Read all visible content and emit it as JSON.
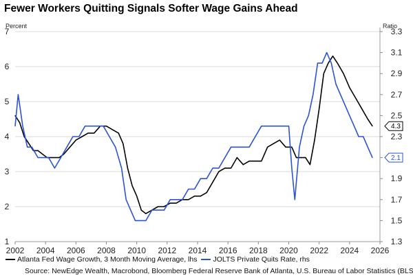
{
  "chart_data": {
    "type": "line",
    "title": "Fewer Workers Quitting Signals Softer Wage Gains Ahead",
    "left_axis": {
      "label": "Percent",
      "range": [
        1,
        7
      ],
      "ticks": [
        "1",
        "2",
        "3",
        "4",
        "5",
        "6",
        "7"
      ]
    },
    "right_axis": {
      "label": "Ratio",
      "range": [
        1.3,
        3.3
      ],
      "ticks": [
        "1.3",
        "1.5",
        "1.7",
        "1.9",
        "2.1",
        "2.3",
        "2.5",
        "2.7",
        "2.9",
        "3.1",
        "3.3"
      ]
    },
    "x_axis": {
      "range": [
        2002,
        2026
      ],
      "ticks": [
        "2002",
        "2004",
        "2006",
        "2008",
        "2010",
        "2012",
        "2014",
        "2016",
        "2018",
        "2020",
        "2022",
        "2024",
        "2026"
      ]
    },
    "grid": true,
    "series": [
      {
        "name": "Atlanta Fed Wage Growth, 3 Month Moving Average, lhs",
        "axis": "left",
        "color": "#000000",
        "end_label": "4.3",
        "points": [
          [
            2002.0,
            4.6
          ],
          [
            2002.3,
            4.4
          ],
          [
            2002.6,
            4.0
          ],
          [
            2002.9,
            3.8
          ],
          [
            2003.2,
            3.6
          ],
          [
            2003.5,
            3.6
          ],
          [
            2003.8,
            3.5
          ],
          [
            2004.1,
            3.4
          ],
          [
            2004.5,
            3.4
          ],
          [
            2004.9,
            3.4
          ],
          [
            2005.2,
            3.5
          ],
          [
            2005.6,
            3.7
          ],
          [
            2006.0,
            3.9
          ],
          [
            2006.4,
            4.0
          ],
          [
            2006.8,
            4.1
          ],
          [
            2007.2,
            4.1
          ],
          [
            2007.6,
            4.3
          ],
          [
            2008.0,
            4.3
          ],
          [
            2008.4,
            4.2
          ],
          [
            2008.8,
            4.1
          ],
          [
            2009.1,
            3.8
          ],
          [
            2009.4,
            3.1
          ],
          [
            2009.7,
            2.6
          ],
          [
            2010.0,
            2.3
          ],
          [
            2010.3,
            1.9
          ],
          [
            2010.6,
            1.8
          ],
          [
            2011.0,
            1.9
          ],
          [
            2011.4,
            2.0
          ],
          [
            2011.8,
            2.0
          ],
          [
            2012.2,
            2.1
          ],
          [
            2012.6,
            2.1
          ],
          [
            2013.0,
            2.2
          ],
          [
            2013.4,
            2.2
          ],
          [
            2013.8,
            2.3
          ],
          [
            2014.2,
            2.3
          ],
          [
            2014.6,
            2.4
          ],
          [
            2015.0,
            2.7
          ],
          [
            2015.4,
            3.0
          ],
          [
            2015.8,
            3.1
          ],
          [
            2016.2,
            3.1
          ],
          [
            2016.6,
            3.4
          ],
          [
            2017.0,
            3.2
          ],
          [
            2017.4,
            3.3
          ],
          [
            2017.8,
            3.3
          ],
          [
            2018.2,
            3.3
          ],
          [
            2018.6,
            3.7
          ],
          [
            2019.0,
            3.8
          ],
          [
            2019.4,
            3.9
          ],
          [
            2019.8,
            3.7
          ],
          [
            2020.2,
            3.7
          ],
          [
            2020.5,
            3.4
          ],
          [
            2020.8,
            3.4
          ],
          [
            2021.1,
            3.4
          ],
          [
            2021.4,
            3.2
          ],
          [
            2021.7,
            3.9
          ],
          [
            2022.0,
            4.8
          ],
          [
            2022.3,
            5.8
          ],
          [
            2022.6,
            6.1
          ],
          [
            2022.9,
            6.3
          ],
          [
            2023.2,
            6.1
          ],
          [
            2023.6,
            5.8
          ],
          [
            2024.0,
            5.4
          ],
          [
            2024.4,
            5.1
          ],
          [
            2024.8,
            4.8
          ],
          [
            2025.2,
            4.5
          ],
          [
            2025.5,
            4.3
          ]
        ]
      },
      {
        "name": "JOLTS Private Quits Rate, rhs",
        "axis": "right",
        "color": "#2a52d9",
        "end_label": "2.1",
        "points": [
          [
            2002.0,
            2.4
          ],
          [
            2002.2,
            2.7
          ],
          [
            2002.5,
            2.4
          ],
          [
            2002.8,
            2.2
          ],
          [
            2003.1,
            2.2
          ],
          [
            2003.5,
            2.1
          ],
          [
            2003.9,
            2.1
          ],
          [
            2004.2,
            2.1
          ],
          [
            2004.6,
            2.0
          ],
          [
            2005.0,
            2.1
          ],
          [
            2005.4,
            2.2
          ],
          [
            2005.8,
            2.3
          ],
          [
            2006.2,
            2.3
          ],
          [
            2006.6,
            2.4
          ],
          [
            2007.0,
            2.4
          ],
          [
            2007.4,
            2.4
          ],
          [
            2007.8,
            2.4
          ],
          [
            2008.2,
            2.3
          ],
          [
            2008.6,
            2.2
          ],
          [
            2009.0,
            2.0
          ],
          [
            2009.3,
            1.7
          ],
          [
            2009.6,
            1.6
          ],
          [
            2009.9,
            1.5
          ],
          [
            2010.2,
            1.5
          ],
          [
            2010.6,
            1.5
          ],
          [
            2011.0,
            1.6
          ],
          [
            2011.4,
            1.6
          ],
          [
            2011.8,
            1.6
          ],
          [
            2012.2,
            1.7
          ],
          [
            2012.6,
            1.7
          ],
          [
            2013.0,
            1.7
          ],
          [
            2013.4,
            1.8
          ],
          [
            2013.8,
            1.8
          ],
          [
            2014.2,
            1.9
          ],
          [
            2014.6,
            1.9
          ],
          [
            2015.0,
            2.0
          ],
          [
            2015.4,
            2.0
          ],
          [
            2015.8,
            2.1
          ],
          [
            2016.2,
            2.2
          ],
          [
            2016.6,
            2.2
          ],
          [
            2017.0,
            2.2
          ],
          [
            2017.4,
            2.2
          ],
          [
            2017.8,
            2.3
          ],
          [
            2018.2,
            2.4
          ],
          [
            2018.6,
            2.4
          ],
          [
            2019.0,
            2.4
          ],
          [
            2019.4,
            2.4
          ],
          [
            2019.8,
            2.4
          ],
          [
            2020.0,
            2.4
          ],
          [
            2020.2,
            2.0
          ],
          [
            2020.4,
            1.7
          ],
          [
            2020.7,
            2.2
          ],
          [
            2021.0,
            2.4
          ],
          [
            2021.3,
            2.5
          ],
          [
            2021.6,
            2.7
          ],
          [
            2021.9,
            3.0
          ],
          [
            2022.2,
            3.0
          ],
          [
            2022.5,
            3.1
          ],
          [
            2022.8,
            3.0
          ],
          [
            2023.1,
            2.8
          ],
          [
            2023.4,
            2.7
          ],
          [
            2023.7,
            2.6
          ],
          [
            2024.0,
            2.5
          ],
          [
            2024.3,
            2.4
          ],
          [
            2024.6,
            2.3
          ],
          [
            2024.9,
            2.3
          ],
          [
            2025.2,
            2.2
          ],
          [
            2025.5,
            2.1
          ]
        ]
      }
    ]
  },
  "legend": {
    "items": [
      {
        "label": "Atlanta Fed Wage Growth, 3 Month Moving Average, lhs",
        "color": "#000000"
      },
      {
        "label": "JOLTS Private Quits Rate, rhs",
        "color": "#2a52d9"
      }
    ]
  },
  "source": "Source: NewEdge Wealth, Macrobond, Bloomberg Federal Reserve Bank of Atlanta, U.S. Bureau of Labor Statistics (BLS)"
}
